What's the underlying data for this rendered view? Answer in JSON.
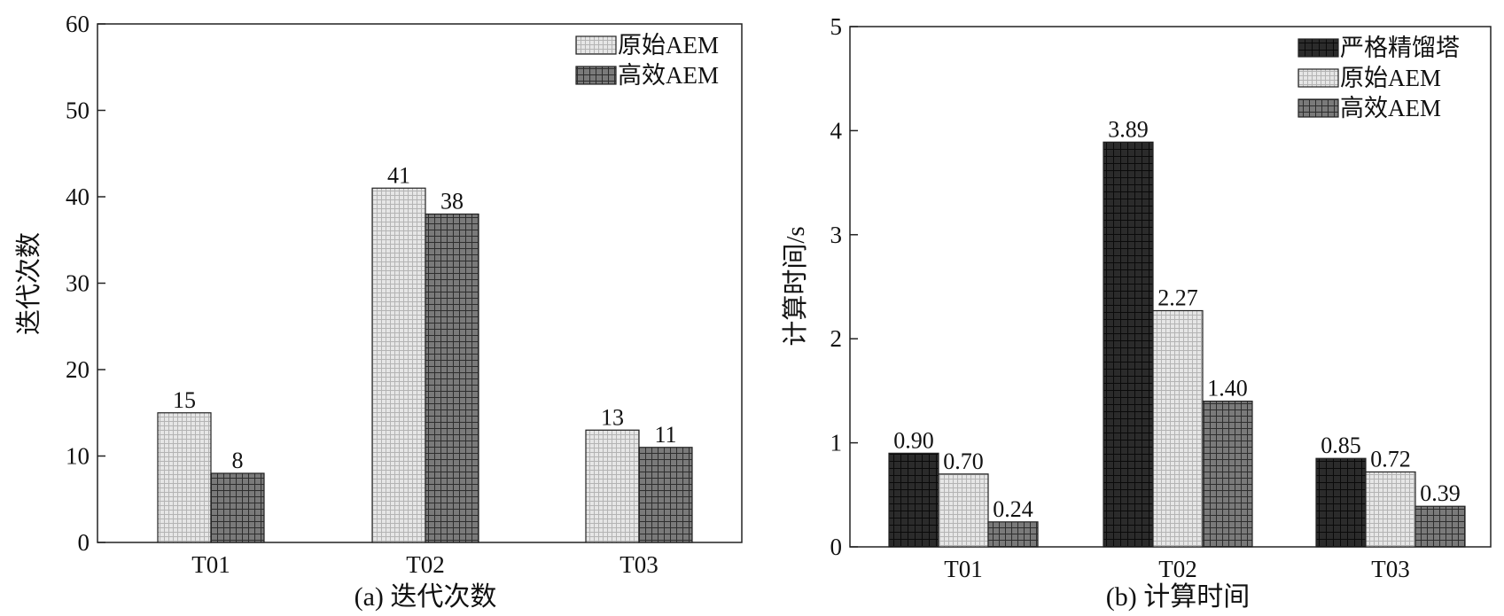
{
  "colors": {
    "strict": "#2b2b2b",
    "original": "#e6e6e6",
    "efficient": "#7a7a7a",
    "grid_line_light": "#b4b4b4",
    "grid_line_dark": "#1e1e1e",
    "axis": "#222222"
  },
  "chart_data": [
    {
      "type": "bar",
      "caption": "(a) 迭代次数",
      "ylabel": "迭代次数",
      "xlabel": "",
      "categories": [
        "T01",
        "T02",
        "T03"
      ],
      "ylim": [
        0,
        60
      ],
      "yticks": [
        0,
        10,
        20,
        30,
        40,
        50,
        60
      ],
      "grid": false,
      "legend_position": "top-right",
      "series": [
        {
          "name": "原始AEM",
          "values": [
            15,
            41,
            13
          ],
          "labels": [
            "15",
            "41",
            "13"
          ],
          "fill_key": "original"
        },
        {
          "name": "高效AEM",
          "values": [
            8,
            38,
            11
          ],
          "labels": [
            "8",
            "38",
            "11"
          ],
          "fill_key": "efficient"
        }
      ]
    },
    {
      "type": "bar",
      "caption": "(b) 计算时间",
      "ylabel": "计算时间/s",
      "xlabel": "",
      "categories": [
        "T01",
        "T02",
        "T03"
      ],
      "ylim": [
        0,
        5
      ],
      "yticks": [
        0,
        1,
        2,
        3,
        4,
        5
      ],
      "grid": false,
      "legend_position": "top-right",
      "series": [
        {
          "name": "严格精馏塔",
          "values": [
            0.9,
            3.89,
            0.85
          ],
          "labels": [
            "0.90",
            "3.89",
            "0.85"
          ],
          "fill_key": "strict"
        },
        {
          "name": "原始AEM",
          "values": [
            0.7,
            2.27,
            0.72
          ],
          "labels": [
            "0.70",
            "2.27",
            "0.72"
          ],
          "fill_key": "original"
        },
        {
          "name": "高效AEM",
          "values": [
            0.24,
            1.4,
            0.39
          ],
          "labels": [
            "0.24",
            "1.40",
            "0.39"
          ],
          "fill_key": "efficient"
        }
      ]
    }
  ]
}
